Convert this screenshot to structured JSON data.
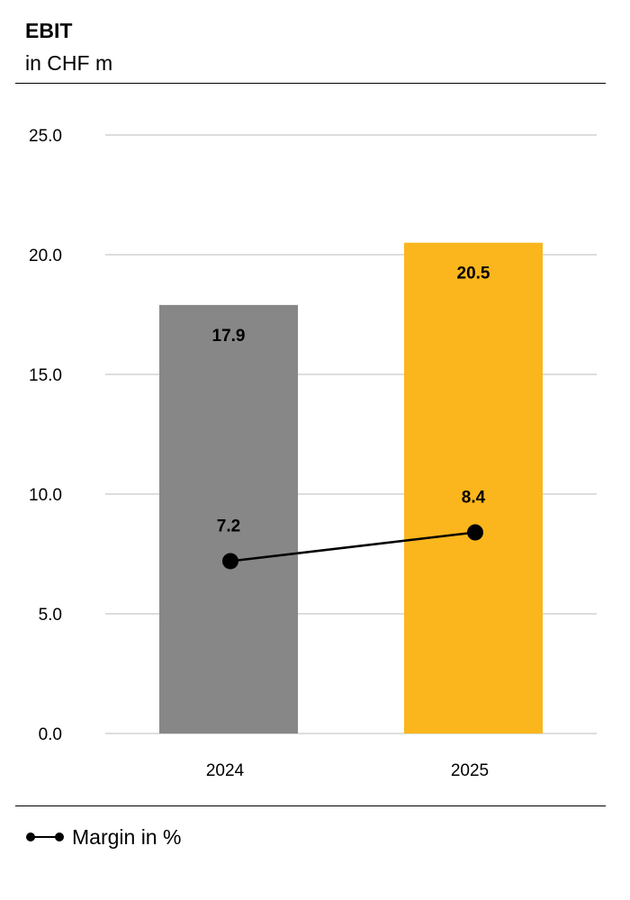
{
  "header": {
    "title": "EBIT",
    "subtitle": "in CHF m"
  },
  "legend": {
    "line_label": "Margin in %"
  },
  "chart_data": {
    "type": "bar",
    "title": "EBIT",
    "subtitle": "in CHF m",
    "categories": [
      "2024",
      "2025"
    ],
    "series": [
      {
        "kind": "bar",
        "values": [
          17.9,
          20.5
        ],
        "data_labels": [
          "17.9",
          "20.5"
        ],
        "colors": [
          "#878787",
          "#fbb61d"
        ]
      },
      {
        "kind": "line",
        "name": "Margin in %",
        "values": [
          7.2,
          8.4
        ],
        "data_labels": [
          "7.2",
          "8.4"
        ],
        "color": "#000000",
        "marker": "circle"
      }
    ],
    "ylim": [
      0,
      25
    ],
    "yticks": [
      0,
      5,
      10,
      15,
      20,
      25
    ],
    "ytick_labels": [
      "0.0",
      "5.0",
      "10.0",
      "15.0",
      "20.0",
      "25.0"
    ],
    "grid": true,
    "gridline_color": "#dddddd",
    "legend_position": "bottom-left"
  }
}
